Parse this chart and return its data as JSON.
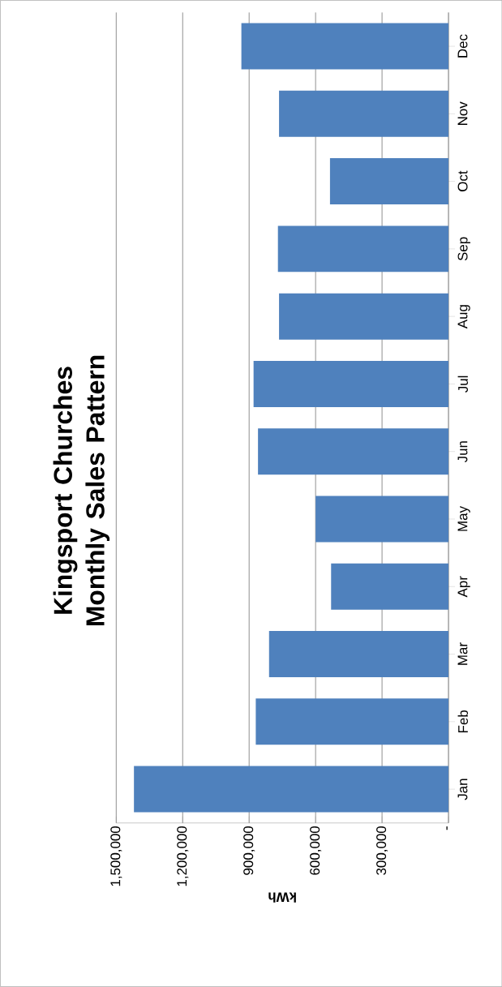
{
  "chart_data": {
    "type": "bar",
    "orientation": "horizontal",
    "title": "Kingsport Churches Monthly Sales Pattern",
    "xlabel": "kWh",
    "categories": [
      "Dec",
      "Nov",
      "Oct",
      "Sep",
      "Aug",
      "Jul",
      "Jun",
      "May",
      "Apr",
      "Mar",
      "Feb",
      "Jan"
    ],
    "values": [
      935000,
      765000,
      535000,
      770000,
      765000,
      880000,
      860000,
      600000,
      530000,
      810000,
      870000,
      1420000
    ],
    "color": "#4f81bd",
    "xlim": [
      1500000,
      0
    ],
    "xticks": [
      {
        "value": 0,
        "label": "-"
      },
      {
        "value": 300000,
        "label": "300,000"
      },
      {
        "value": 600000,
        "label": "600,000"
      },
      {
        "value": 900000,
        "label": "900,000"
      },
      {
        "value": 1200000,
        "label": "1,200,000"
      },
      {
        "value": 1500000,
        "label": "1,500,000"
      }
    ],
    "grid": "x"
  }
}
